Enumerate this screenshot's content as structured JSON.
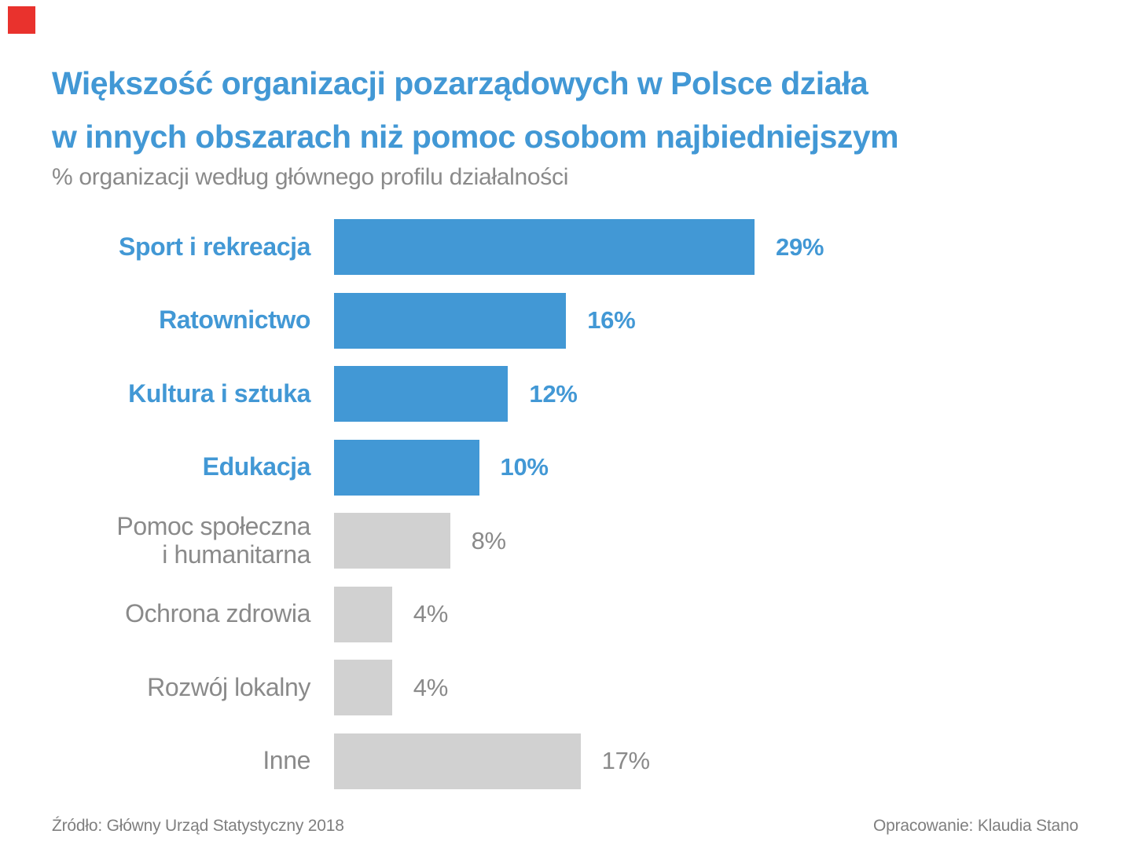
{
  "theme": {
    "accent_blue": "#4298d5",
    "bar_gray": "#d1d1d1",
    "text_gray": "#8a8a8a",
    "footer_gray": "#7f7f7f",
    "marker_red": "#e9322d",
    "background": "#ffffff"
  },
  "title": {
    "line1": "Większość organizacji pozarządowych w Polsce działa",
    "line2": "w innych obszarach niż pomoc osobom najbiedniejszym"
  },
  "subtitle": "% organizacji według głównego profilu działalności",
  "chart_data": {
    "type": "bar",
    "orientation": "horizontal",
    "unit": "%",
    "title": "Większość organizacji pozarządowych w Polsce działa w innych obszarach niż pomoc osobom najbiedniejszym",
    "subtitle": "% organizacji według głównego profilu działalności",
    "categories": [
      "Sport i rekreacja",
      "Ratownictwo",
      "Kultura i sztuka",
      "Edukacja",
      "Pomoc społeczna\ni humanitarna",
      "Ochrona zdrowia",
      "Rozwój lokalny",
      "Inne"
    ],
    "values": [
      29,
      16,
      12,
      10,
      8,
      4,
      4,
      17
    ],
    "value_labels": [
      "29%",
      "16%",
      "12%",
      "10%",
      "8%",
      "4%",
      "4%",
      "17%"
    ],
    "highlighted": [
      true,
      true,
      true,
      true,
      false,
      false,
      false,
      false
    ],
    "highlight_color": "#4298d5",
    "muted_color": "#d1d1d1",
    "xlim": [
      0,
      30
    ],
    "grid": false,
    "legend": false
  },
  "footer": {
    "source": "Źródło: Główny Urząd Statystyczny 2018",
    "author": "Opracowanie: Klaudia Stano"
  }
}
